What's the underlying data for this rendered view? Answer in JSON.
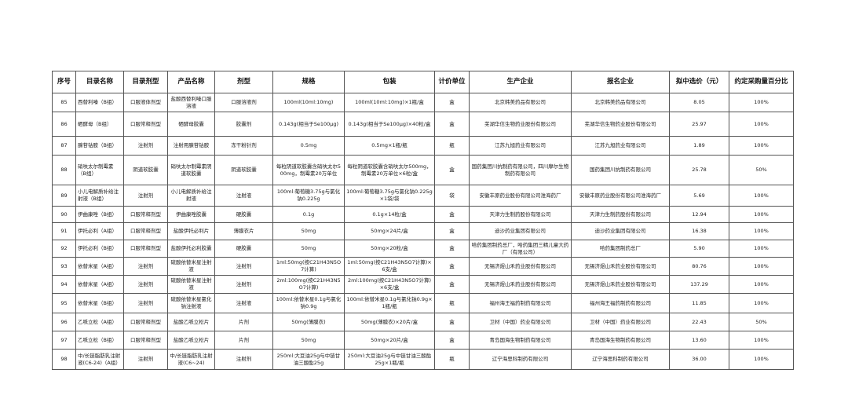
{
  "headers": [
    "序号",
    "目录名称",
    "目录剂型",
    "产品名称",
    "剂型",
    "规格",
    "包装",
    "计价单位",
    "生产企业",
    "报名企业",
    "拟中选价（元）",
    "约定采购量百分比"
  ],
  "rows": [
    [
      "85",
      "西替利嗪（B组）",
      "口服液体剂型",
      "盐酸西替利嗪口服溶液",
      "口服溶液剂",
      "100ml(10ml:10mg)",
      "100ml(10ml:10mg)×1瓶/盒",
      "盒",
      "北京韩美药品有限公司",
      "北京韩美药品有限公司",
      "8.05",
      "100%"
    ],
    [
      "86",
      "硒酵母（B组）",
      "口服常释剂型",
      "硒酵母胶囊",
      "胶囊剂",
      "0.143g(相当于Se100μg)",
      "0.143g(相当于Se100μg)×40粒/盒",
      "盒",
      "芜湖华信生物药业股份有限公司",
      "芜湖华信生物药业股份有限公司",
      "25.97",
      "100%"
    ],
    [
      "87",
      "腺苷钴胺（B组）",
      "注射剂",
      "注射用腺苷钴胺",
      "冻干粉针剂",
      "0.5mg",
      "0.5mg×1瓶/瓶",
      "瓶",
      "江苏九旭药业有限公司",
      "江苏九旭药业有限公司",
      "1.89",
      "100%"
    ],
    [
      "88",
      "硝呋太尔制霉素（B组）",
      "阴道软胶囊",
      "硝呋太尔制霉素阴道软胶囊",
      "阴道软胶囊",
      "每粒阴道软胶囊含硝呋太尔500mg，制霉素20万单位",
      "每粒阴道软胶囊含硝呋太尔500mg，制霉素20万单位×6粒/盒",
      "盒",
      "国药集团川抗制药有限公司，四川摩尔生物制药有限公司",
      "国药集团川抗制药有限公司",
      "25.78",
      "50%"
    ],
    [
      "89",
      "小儿电解质补给注射液（B组）",
      "注射剂",
      "小儿电解质补给注射液",
      "注射液",
      "100ml:葡萄糖3.75g与氯化钠0.225g",
      "100ml:葡萄糖3.75g与氯化钠0.225g×1袋/袋",
      "袋",
      "安徽丰原药业股份有限公司淮海药厂",
      "安徽丰原药业股份有限公司淮海药厂",
      "5.69",
      "100%"
    ],
    [
      "90",
      "伊曲康唑（B组）",
      "口服常释剂型",
      "伊曲康唑胶囊",
      "硬胶囊",
      "0.1g",
      "0.1g×14粒/盒",
      "盒",
      "天津力生制药股份有限公司",
      "天津力生制药股份有限公司",
      "12.94",
      "100%"
    ],
    [
      "91",
      "伊托必利（A组）",
      "口服常释剂型",
      "盐酸伊托必利片",
      "薄膜衣片",
      "50mg",
      "50mg×24片/盒",
      "盒",
      "迪沙药业集团有限公司",
      "迪沙药业集团有限公司",
      "16.38",
      "100%"
    ],
    [
      "92",
      "伊托必利（B组）",
      "口服常释剂型",
      "盐酸伊托必利胶囊",
      "硬胶囊",
      "50mg",
      "50mg×20粒/盒",
      "盒",
      "哈药集团制药总厂，哈药集团三精儿童大药厂（有限公司）",
      "哈药集团制药总厂",
      "5.90",
      "100%"
    ],
    [
      "93",
      "依替米星（A组）",
      "注射剂",
      "硫酸依替米星注射液",
      "注射剂",
      "1ml:50mg(按C21H43N5O7计算)",
      "1ml:50mg(按C21H43N5O7计算)×6支/盒",
      "盒",
      "无锡济煜山禾药业股份有限公司",
      "无锡济煜山禾药业股份有限公司",
      "80.76",
      "100%"
    ],
    [
      "94",
      "依替米星（A组）",
      "注射剂",
      "硫酸依替米星注射液",
      "注射剂",
      "2ml:100mg(按C21H43N5O7计算)",
      "2ml:100mg(按C21H43N5O7计算)×6支/盒",
      "盒",
      "无锡济煜山禾药业股份有限公司",
      "无锡济煜山禾药业股份有限公司",
      "137.29",
      "100%"
    ],
    [
      "95",
      "依替米星（B组）",
      "注射剂",
      "硫酸依替米星氯化钠注射液",
      "注射液",
      "100ml:依替米星0.1g与氯化钠0.9g",
      "100ml:依替米星0.1g与氯化钠0.9g×1瓶/瓶",
      "瓶",
      "福州海王福药制药有限公司",
      "福州海王福药制药有限公司",
      "11.85",
      "100%"
    ],
    [
      "96",
      "乙哌立松（A组）",
      "口服常释剂型",
      "盐酸乙哌立松片",
      "片剂",
      "50mg(薄膜衣)",
      "50mg(薄膜衣)×20片/盒",
      "盒",
      "卫材（中国）药业有限公司",
      "卫材（中国）药业有限公司",
      "22.43",
      "50%"
    ],
    [
      "97",
      "乙哌立松（B组）",
      "口服常释剂型",
      "盐酸乙哌立松片",
      "片剂",
      "50mg",
      "50mg×20片/盒",
      "盒",
      "青岛国海生物制药有限公司",
      "青岛国海生物制药有限公司",
      "13.60",
      "100%"
    ],
    [
      "98",
      "中/长链脂肪乳注射液(C6-24)（A组）",
      "注射剂",
      "中/长链脂肪乳注射液(C6~24)",
      "注射剂",
      "250ml:大豆油25g与中链甘油三酸酯25g",
      "250ml:大豆油25g与中链甘油三酸酯25g×1瓶/瓶",
      "瓶",
      "辽宁海思科制药有限公司",
      "辽宁海思科制药有限公司",
      "36.00",
      "100%"
    ]
  ]
}
